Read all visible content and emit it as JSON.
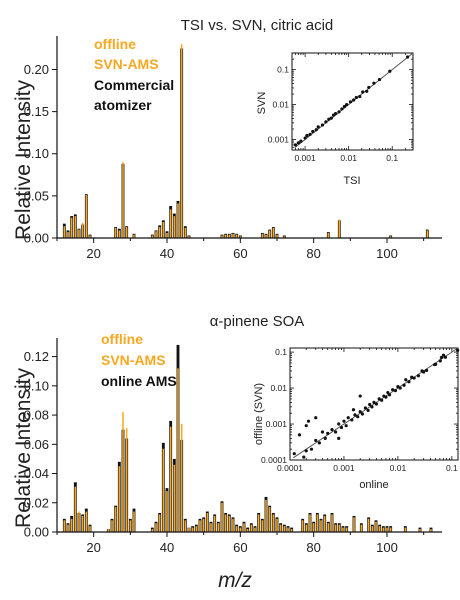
{
  "xlabel": "m/z",
  "colors": {
    "orange": "#F7A823",
    "black": "#111111",
    "line": "#555555"
  },
  "chart_data": [
    {
      "type": "bar",
      "title": "TSI vs. SVN, citric acid",
      "ylabel": "Relative Intensity",
      "xlim": [
        10,
        115
      ],
      "ylim": [
        0,
        0.235
      ],
      "xticks": [
        20,
        40,
        60,
        80,
        100
      ],
      "yticks": [
        "0.00",
        "0.05",
        "0.10",
        "0.15",
        "0.20"
      ],
      "legend": {
        "position": "top-left",
        "entries": [
          {
            "label": "offline",
            "color": "#F7A823"
          },
          {
            "label": "SVN-AMS",
            "color": "#F7A823"
          },
          {
            "label": "Commercial",
            "color": "#111111"
          },
          {
            "label": "atomizer",
            "color": "#111111"
          }
        ]
      },
      "series": [
        {
          "name": "offline SVN-AMS",
          "color": "#F7A823",
          "x": [
            12,
            13,
            14,
            15,
            16,
            17,
            18,
            19,
            26,
            27,
            28,
            29,
            31,
            36,
            37,
            38,
            39,
            40,
            41,
            42,
            43,
            44,
            45,
            46,
            55,
            56,
            57,
            58,
            59,
            60,
            66,
            67,
            68,
            69,
            70,
            72,
            84,
            87,
            101,
            111
          ],
          "values": [
            0.014,
            0.007,
            0.024,
            0.026,
            0.01,
            0.018,
            0.051,
            0.003,
            0.012,
            0.009,
            0.09,
            0.013,
            0.004,
            0.003,
            0.008,
            0.013,
            0.019,
            0.006,
            0.034,
            0.026,
            0.041,
            0.23,
            0.012,
            0.002,
            0.003,
            0.004,
            0.004,
            0.005,
            0.004,
            0.002,
            0.005,
            0.004,
            0.009,
            0.012,
            0.004,
            0.002,
            0.006,
            0.022,
            0.002,
            0.009
          ]
        },
        {
          "name": "Commercial atomizer",
          "color": "#111111",
          "x": [
            12,
            13,
            14,
            15,
            16,
            17,
            18,
            19,
            26,
            27,
            28,
            29,
            31,
            36,
            37,
            38,
            39,
            40,
            41,
            42,
            43,
            44,
            45,
            46,
            55,
            56,
            57,
            58,
            59,
            60,
            66,
            67,
            68,
            69,
            70,
            72,
            84,
            87,
            101,
            111
          ],
          "values": [
            0.017,
            0.009,
            0.026,
            0.028,
            0.011,
            0.016,
            0.052,
            0.004,
            0.013,
            0.011,
            0.088,
            0.014,
            0.005,
            0.004,
            0.009,
            0.015,
            0.021,
            0.008,
            0.038,
            0.029,
            0.044,
            0.225,
            0.014,
            0.003,
            0.004,
            0.005,
            0.005,
            0.006,
            0.005,
            0.003,
            0.006,
            0.005,
            0.01,
            0.013,
            0.005,
            0.003,
            0.007,
            0.021,
            0.003,
            0.01
          ]
        }
      ],
      "inset": {
        "type": "scatter",
        "xlabel": "TSI",
        "ylabel": "SVN",
        "log": true,
        "xlim": [
          0.0005,
          0.3
        ],
        "ylim": [
          0.0005,
          0.3
        ],
        "xticks": [
          "0.001",
          "0.01",
          "0.1"
        ],
        "yticks": [
          "0.001",
          "0.01",
          "0.1"
        ],
        "fit_line": true,
        "points": [
          [
            0.0006,
            0.0007
          ],
          [
            0.0007,
            0.0008
          ],
          [
            0.0008,
            0.0009
          ],
          [
            0.001,
            0.0011
          ],
          [
            0.0011,
            0.0013
          ],
          [
            0.0013,
            0.0014
          ],
          [
            0.0015,
            0.0017
          ],
          [
            0.0018,
            0.0019
          ],
          [
            0.002,
            0.0023
          ],
          [
            0.0025,
            0.0026
          ],
          [
            0.003,
            0.0032
          ],
          [
            0.0035,
            0.0038
          ],
          [
            0.004,
            0.0041
          ],
          [
            0.0045,
            0.005
          ],
          [
            0.005,
            0.0055
          ],
          [
            0.006,
            0.0062
          ],
          [
            0.007,
            0.0075
          ],
          [
            0.008,
            0.0088
          ],
          [
            0.009,
            0.01
          ],
          [
            0.011,
            0.012
          ],
          [
            0.013,
            0.0135
          ],
          [
            0.015,
            0.016
          ],
          [
            0.018,
            0.017
          ],
          [
            0.021,
            0.023
          ],
          [
            0.026,
            0.024
          ],
          [
            0.029,
            0.031
          ],
          [
            0.038,
            0.041
          ],
          [
            0.051,
            0.052
          ],
          [
            0.088,
            0.09
          ],
          [
            0.225,
            0.23
          ]
        ]
      }
    },
    {
      "type": "bar",
      "title": "α-pinene SOA",
      "ylabel": "Relative Intensity",
      "xlim": [
        10,
        115
      ],
      "ylim": [
        0,
        0.13
      ],
      "xticks": [
        20,
        40,
        60,
        80,
        100
      ],
      "yticks": [
        "0.00",
        "0.02",
        "0.04",
        "0.06",
        "0.08",
        "0.10",
        "0.12"
      ],
      "legend": {
        "position": "top-left",
        "entries": [
          {
            "label": "offline",
            "color": "#F7A823"
          },
          {
            "label": "SVN-AMS",
            "color": "#F7A823"
          },
          {
            "label": "online AMS",
            "color": "#111111"
          }
        ]
      },
      "series": [
        {
          "name": "offline SVN-AMS",
          "color": "#F7A823",
          "x": [
            12,
            13,
            14,
            15,
            16,
            17,
            18,
            19,
            24,
            25,
            26,
            27,
            28,
            29,
            30,
            31,
            36,
            37,
            38,
            39,
            40,
            41,
            42,
            43,
            44,
            45,
            46,
            47,
            48,
            49,
            50,
            51,
            52,
            53,
            54,
            55,
            56,
            57,
            58,
            59,
            60,
            61,
            62,
            63,
            64,
            65,
            66,
            67,
            68,
            69,
            70,
            71,
            72,
            73,
            74,
            77,
            78,
            79,
            80,
            81,
            82,
            83,
            84,
            85,
            86,
            87,
            88,
            89,
            91,
            93,
            95,
            96,
            97,
            98,
            99,
            100,
            101,
            105,
            109,
            112
          ],
          "values": [
            0.008,
            0.005,
            0.009,
            0.031,
            0.014,
            0.011,
            0.014,
            0.004,
            0.002,
            0.008,
            0.017,
            0.045,
            0.082,
            0.071,
            0.008,
            0.014,
            0.002,
            0.006,
            0.012,
            0.057,
            0.028,
            0.072,
            0.046,
            0.112,
            0.074,
            0.008,
            0.003,
            0.003,
            0.004,
            0.008,
            0.009,
            0.013,
            0.006,
            0.011,
            0.006,
            0.02,
            0.012,
            0.011,
            0.009,
            0.004,
            0.003,
            0.006,
            0.002,
            0.005,
            0.003,
            0.012,
            0.008,
            0.022,
            0.017,
            0.012,
            0.009,
            0.005,
            0.004,
            0.003,
            0.002,
            0.008,
            0.005,
            0.012,
            0.006,
            0.012,
            0.008,
            0.011,
            0.006,
            0.012,
            0.005,
            0.005,
            0.003,
            0.003,
            0.01,
            0.005,
            0.009,
            0.004,
            0.007,
            0.004,
            0.003,
            0.003,
            0.003,
            0.003,
            0.002,
            0.002
          ]
        },
        {
          "name": "online AMS",
          "color": "#111111",
          "x": [
            12,
            13,
            14,
            15,
            16,
            17,
            18,
            19,
            24,
            25,
            26,
            27,
            28,
            29,
            30,
            31,
            36,
            37,
            38,
            39,
            40,
            41,
            42,
            43,
            44,
            45,
            46,
            47,
            48,
            49,
            50,
            51,
            52,
            53,
            54,
            55,
            56,
            57,
            58,
            59,
            60,
            61,
            62,
            63,
            64,
            65,
            66,
            67,
            68,
            69,
            70,
            71,
            72,
            73,
            74,
            77,
            78,
            79,
            80,
            81,
            82,
            83,
            84,
            85,
            86,
            87,
            88,
            89,
            91,
            93,
            95,
            96,
            97,
            98,
            99,
            100,
            101,
            105,
            109,
            112
          ],
          "values": [
            0.009,
            0.006,
            0.011,
            0.034,
            0.013,
            0.012,
            0.016,
            0.005,
            0.002,
            0.009,
            0.018,
            0.048,
            0.07,
            0.064,
            0.009,
            0.016,
            0.003,
            0.007,
            0.013,
            0.061,
            0.03,
            0.076,
            0.05,
            0.128,
            0.063,
            0.009,
            0.003,
            0.004,
            0.005,
            0.009,
            0.01,
            0.014,
            0.007,
            0.012,
            0.007,
            0.021,
            0.013,
            0.012,
            0.01,
            0.005,
            0.004,
            0.007,
            0.003,
            0.006,
            0.004,
            0.013,
            0.009,
            0.024,
            0.018,
            0.013,
            0.01,
            0.006,
            0.005,
            0.004,
            0.003,
            0.009,
            0.006,
            0.013,
            0.007,
            0.013,
            0.009,
            0.012,
            0.007,
            0.013,
            0.006,
            0.006,
            0.004,
            0.004,
            0.011,
            0.006,
            0.01,
            0.005,
            0.008,
            0.005,
            0.004,
            0.004,
            0.004,
            0.004,
            0.003,
            0.003
          ]
        }
      ],
      "inset": {
        "type": "scatter",
        "xlabel": "online",
        "ylabel": "offline (SVN)",
        "log": true,
        "xlim": [
          0.0001,
          0.13
        ],
        "ylim": [
          0.0001,
          0.13
        ],
        "xticks": [
          "0.0001",
          "0.001",
          "0.01",
          "0.1"
        ],
        "yticks": [
          "0.0001",
          "0.001",
          "0.01",
          "0.1"
        ],
        "fit_line": true,
        "points": [
          [
            0.00012,
            0.00015
          ],
          [
            0.00015,
            0.0005
          ],
          [
            0.0002,
            0.00018
          ],
          [
            0.00022,
            0.0012
          ],
          [
            0.00025,
            0.0002
          ],
          [
            0.0003,
            0.00035
          ],
          [
            0.00035,
            0.0003
          ],
          [
            0.0004,
            0.0006
          ],
          [
            0.00045,
            0.0004
          ],
          [
            0.0005,
            0.00055
          ],
          [
            0.0006,
            0.0007
          ],
          [
            0.0007,
            0.0006
          ],
          [
            0.0008,
            0.001
          ],
          [
            0.0009,
            0.0008
          ],
          [
            0.001,
            0.0012
          ],
          [
            0.0011,
            0.0009
          ],
          [
            0.0012,
            0.0015
          ],
          [
            0.0014,
            0.0013
          ],
          [
            0.0015,
            0.0025
          ],
          [
            0.0016,
            0.0018
          ],
          [
            0.0018,
            0.0016
          ],
          [
            0.002,
            0.0022
          ],
          [
            0.0022,
            0.0019
          ],
          [
            0.0025,
            0.0028
          ],
          [
            0.0028,
            0.0024
          ],
          [
            0.003,
            0.0035
          ],
          [
            0.0033,
            0.003
          ],
          [
            0.0036,
            0.004
          ],
          [
            0.004,
            0.0036
          ],
          [
            0.0045,
            0.005
          ],
          [
            0.005,
            0.0046
          ],
          [
            0.0055,
            0.006
          ],
          [
            0.006,
            0.0056
          ],
          [
            0.0065,
            0.0075
          ],
          [
            0.007,
            0.0065
          ],
          [
            0.008,
            0.009
          ],
          [
            0.009,
            0.0085
          ],
          [
            0.01,
            0.011
          ],
          [
            0.011,
            0.01
          ],
          [
            0.013,
            0.012
          ],
          [
            0.014,
            0.017
          ],
          [
            0.016,
            0.015
          ],
          [
            0.018,
            0.02
          ],
          [
            0.02,
            0.019
          ],
          [
            0.024,
            0.022
          ],
          [
            0.028,
            0.03
          ],
          [
            0.03,
            0.028
          ],
          [
            0.034,
            0.031
          ],
          [
            0.048,
            0.045
          ],
          [
            0.05,
            0.046
          ],
          [
            0.061,
            0.057
          ],
          [
            0.064,
            0.071
          ],
          [
            0.07,
            0.082
          ],
          [
            0.076,
            0.072
          ],
          [
            0.128,
            0.112
          ],
          [
            0.0002,
            0.0009
          ],
          [
            0.00018,
            0.00012
          ],
          [
            0.0003,
            0.0015
          ],
          [
            0.002,
            0.006
          ],
          [
            0.0008,
            0.0004
          ]
        ]
      }
    }
  ]
}
